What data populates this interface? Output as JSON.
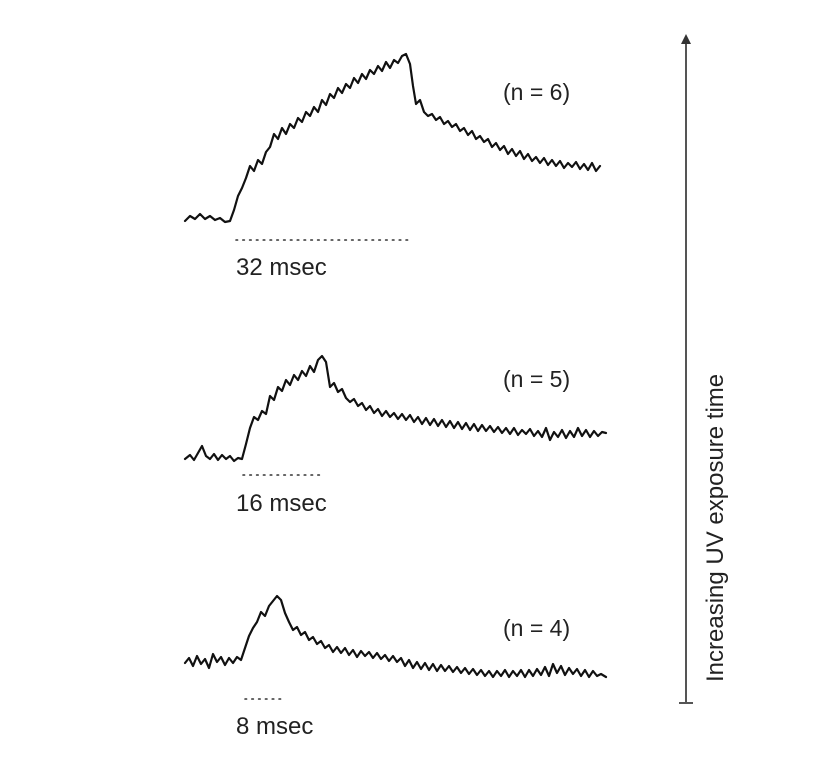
{
  "panels": [
    {
      "id": "p32",
      "n_label": "(n = 6)",
      "duration_label": "32 msec",
      "stim_ms": 32
    },
    {
      "id": "p16",
      "n_label": "(n = 5)",
      "duration_label": "16 msec",
      "stim_ms": 16
    },
    {
      "id": "p8",
      "n_label": "(n = 4)",
      "duration_label": "8 msec",
      "stim_ms": 8
    }
  ],
  "axis": {
    "label": "Increasing UV exposure time",
    "icon": "arrow-up-icon"
  }
}
